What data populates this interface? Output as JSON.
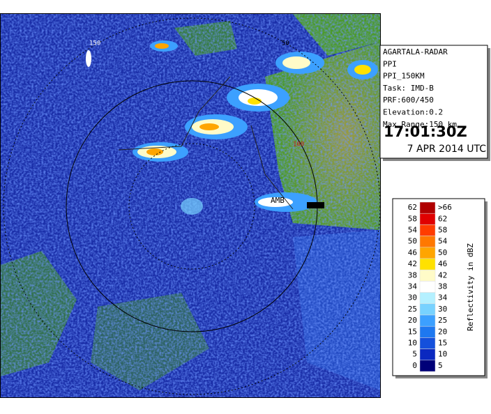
{
  "panel": {
    "lines": [
      "AGARTALA-RADAR",
      "PPI",
      "PPI_150KM",
      "Task: IMD-B",
      "PRF:600/450",
      "Elevation:0.2",
      "Max Range:150 km"
    ],
    "time": "17:01:30Z",
    "date": "7 APR 2014 UTC"
  },
  "legend": {
    "title": "Reflectivity in dBZ",
    "rows": [
      {
        "low": 62,
        "high": ">66",
        "color": "#b00000"
      },
      {
        "low": 58,
        "high": 62,
        "color": "#e00000"
      },
      {
        "low": 54,
        "high": 58,
        "color": "#ff3c00"
      },
      {
        "low": 50,
        "high": 54,
        "color": "#ff7800"
      },
      {
        "low": 46,
        "high": 50,
        "color": "#ffa500"
      },
      {
        "low": 42,
        "high": 46,
        "color": "#ffe100"
      },
      {
        "low": 38,
        "high": 42,
        "color": "#fffbc8"
      },
      {
        "low": 34,
        "high": 38,
        "color": "#ffffff"
      },
      {
        "low": 30,
        "high": 34,
        "color": "#b4f0ff"
      },
      {
        "low": 25,
        "high": 30,
        "color": "#78d2ff"
      },
      {
        "low": 20,
        "high": 25,
        "color": "#3ca0ff"
      },
      {
        "low": 15,
        "high": 20,
        "color": "#1e78f0"
      },
      {
        "low": 10,
        "high": 15,
        "color": "#1450dc"
      },
      {
        "low": 5,
        "high": 10,
        "color": "#0a28c0"
      },
      {
        "low": 0,
        "high": 5,
        "color": "#000078"
      }
    ]
  },
  "map_labels": [
    "AMB",
    "100",
    "150",
    "50"
  ]
}
